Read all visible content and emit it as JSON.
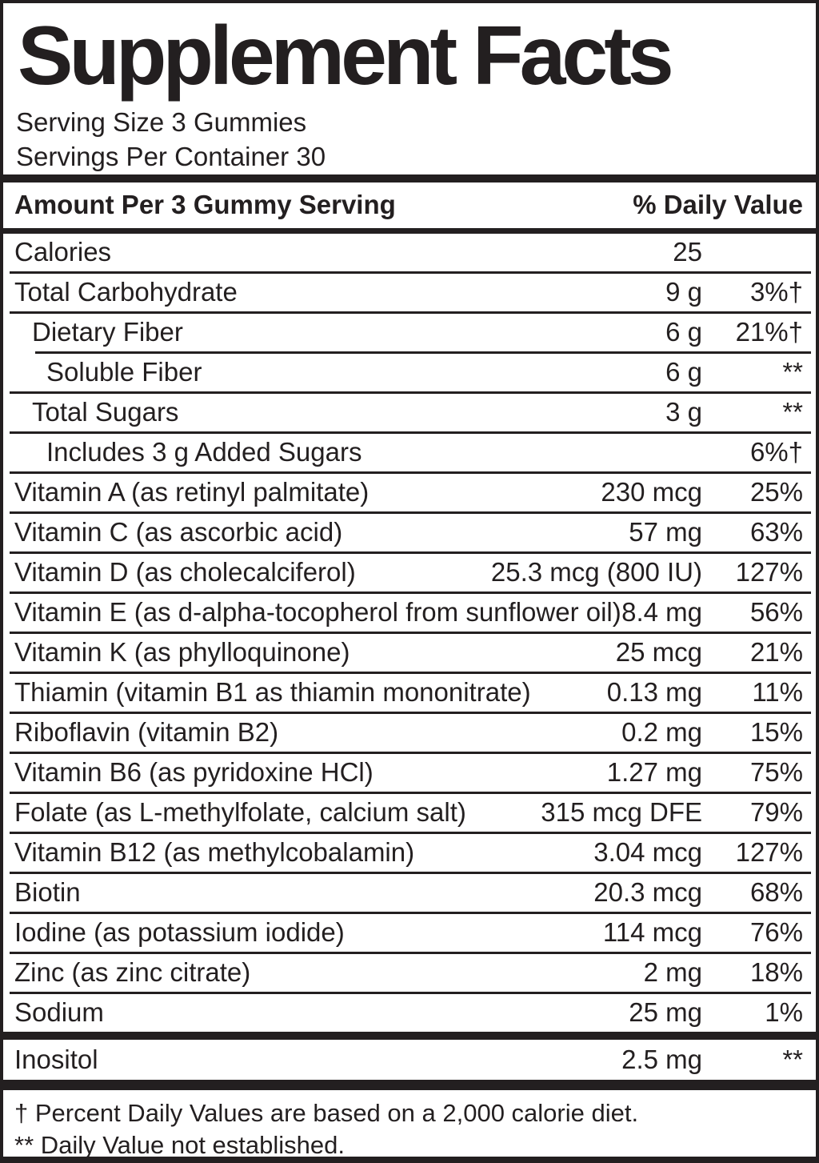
{
  "title": "Supplement Facts",
  "serving": {
    "size": "Serving Size 3 Gummies",
    "per_container": "Servings Per Container 30"
  },
  "table": {
    "header": {
      "amount_label": "Amount Per 3 Gummy Serving",
      "dv_label": "% Daily Value"
    },
    "rows": [
      {
        "name": "Calories",
        "amount": "25",
        "dv": "",
        "indent": 0
      },
      {
        "name": "Total Carbohydrate",
        "amount": "9 g",
        "dv": "3%†",
        "indent": 0
      },
      {
        "name": "Dietary Fiber",
        "amount": "6 g",
        "dv": "21%†",
        "indent": 1
      },
      {
        "name": "Soluble Fiber",
        "amount": "6 g",
        "dv": "**",
        "indent": 2,
        "sep_indent": true
      },
      {
        "name": "Total Sugars",
        "amount": "3 g",
        "dv": "**",
        "indent": 1
      },
      {
        "name": "Includes 3 g Added Sugars",
        "amount": "",
        "dv": "6%†",
        "indent": 2
      },
      {
        "name": "Vitamin A (as retinyl palmitate)",
        "amount": "230 mcg",
        "dv": "25%",
        "indent": 0
      },
      {
        "name": "Vitamin C (as ascorbic acid)",
        "amount": "57 mg",
        "dv": "63%",
        "indent": 0
      },
      {
        "name": "Vitamin D (as cholecalciferol)",
        "amount": "25.3 mcg (800 IU)",
        "dv": "127%",
        "indent": 0
      },
      {
        "name": "Vitamin E (as d-alpha-tocopherol from sunflower oil)",
        "amount": "8.4 mg",
        "dv": "56%",
        "indent": 0
      },
      {
        "name": "Vitamin K (as phylloquinone)",
        "amount": "25 mcg",
        "dv": "21%",
        "indent": 0
      },
      {
        "name": "Thiamin (vitamin B1 as thiamin mononitrate)",
        "amount": "0.13 mg",
        "dv": "11%",
        "indent": 0
      },
      {
        "name": "Riboflavin (vitamin B2)",
        "amount": "0.2 mg",
        "dv": "15%",
        "indent": 0
      },
      {
        "name": "Vitamin B6 (as pyridoxine HCl)",
        "amount": "1.27 mg",
        "dv": "75%",
        "indent": 0
      },
      {
        "name": "Folate (as L-methylfolate, calcium salt)",
        "amount": "315 mcg DFE",
        "dv": "79%",
        "indent": 0
      },
      {
        "name": "Vitamin B12 (as methylcobalamin)",
        "amount": "3.04 mcg",
        "dv": "127%",
        "indent": 0
      },
      {
        "name": "Biotin",
        "amount": "20.3 mcg",
        "dv": "68%",
        "indent": 0
      },
      {
        "name": "Iodine (as potassium iodide)",
        "amount": "114 mcg",
        "dv": "76%",
        "indent": 0
      },
      {
        "name": "Zinc (as zinc citrate)",
        "amount": "2 mg",
        "dv": "18%",
        "indent": 0
      },
      {
        "name": "Sodium",
        "amount": "25 mg",
        "dv": "1%",
        "indent": 0
      }
    ],
    "other_rows": [
      {
        "name": "Inositol",
        "amount": "2.5 mg",
        "dv": "**",
        "indent": 0
      }
    ]
  },
  "footnotes": [
    "† Percent Daily Values are based on a 2,000 calorie diet.",
    "** Daily Value not established."
  ],
  "colors": {
    "ink": "#231f20",
    "background": "#ffffff"
  }
}
